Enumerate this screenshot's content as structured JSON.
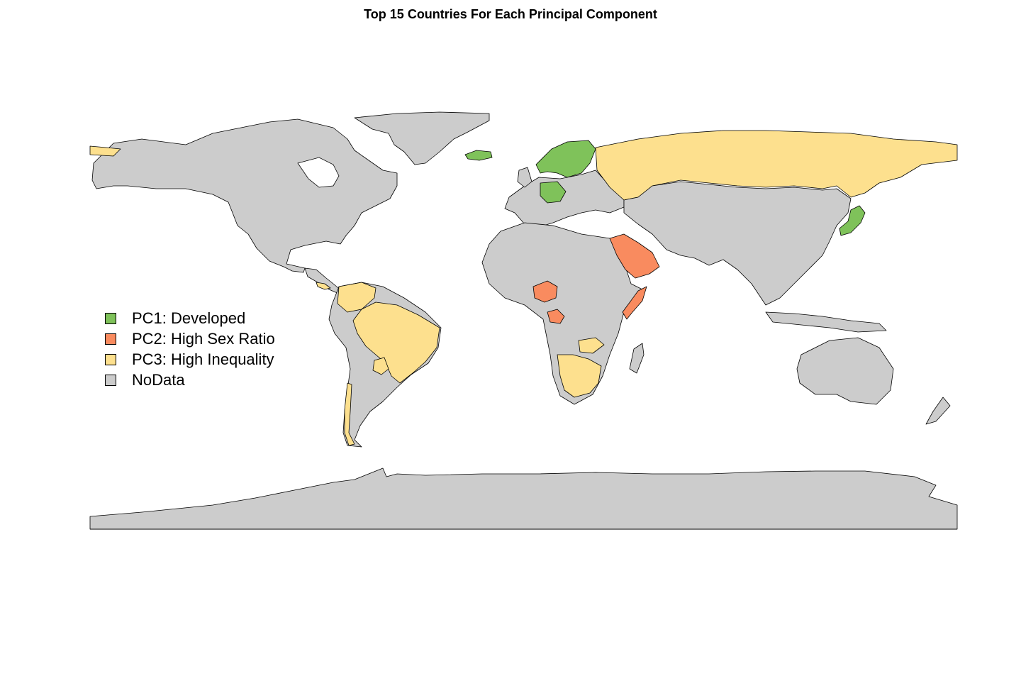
{
  "title": "Top 15 Countries For Each Principal Component",
  "legend": {
    "items": [
      {
        "label": "PC1: Developed",
        "color": "#7fc25a"
      },
      {
        "label": "PC2: High Sex Ratio",
        "color": "#f98b5f"
      },
      {
        "label": "PC3: High Inequality",
        "color": "#fde08e"
      },
      {
        "label": "NoData",
        "color": "#cccccc"
      }
    ]
  },
  "colors": {
    "pc1": "#7fc25a",
    "pc2": "#f98b5f",
    "pc3": "#fde08e",
    "nodata": "#cccccc",
    "border": "#000000"
  }
}
